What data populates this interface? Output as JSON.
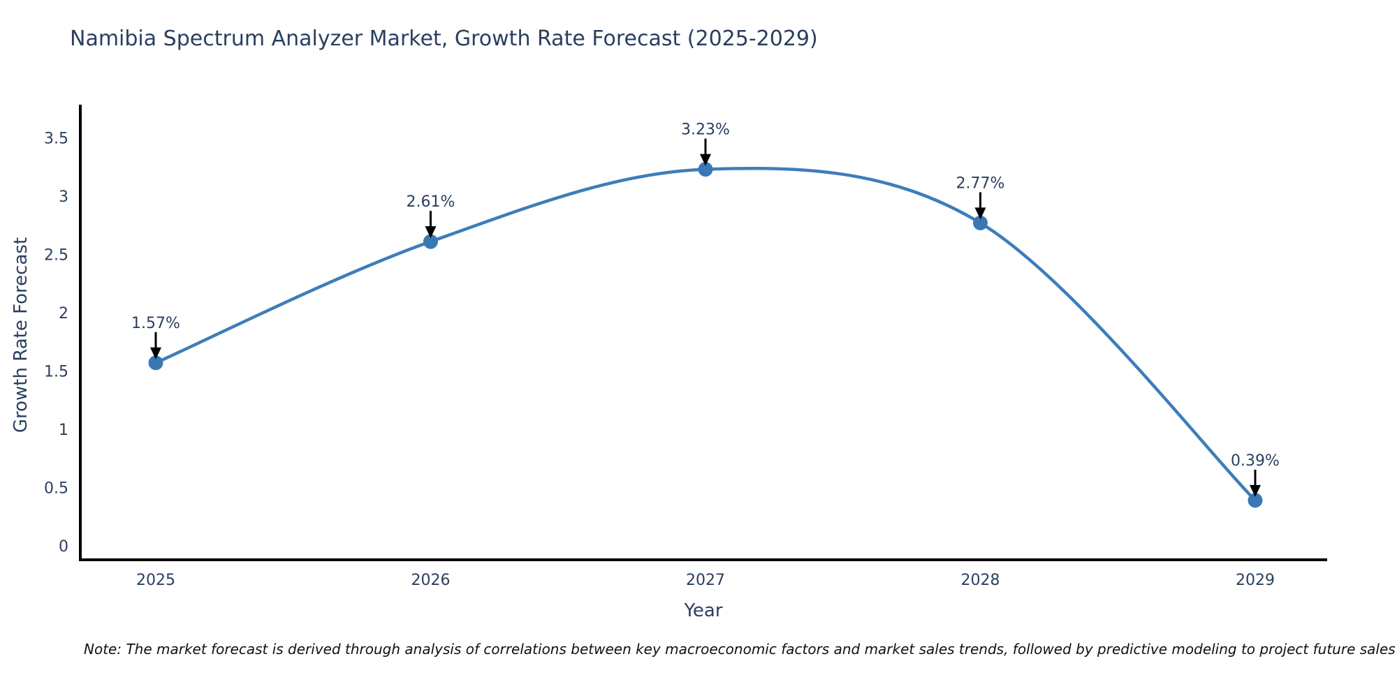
{
  "title": "Namibia Spectrum Analyzer Market, Growth Rate Forecast (2025-2029)",
  "note": "Note: The market forecast is derived through analysis of correlations between key macroeconomic factors and market sales trends, followed by predictive modeling to project future sales",
  "chart_data": {
    "type": "line",
    "title": "Namibia Spectrum Analyzer Market, Growth Rate Forecast (2025-2029)",
    "xlabel": "Year",
    "ylabel": "Growth Rate Forecast",
    "x": [
      2025,
      2026,
      2027,
      2028,
      2029
    ],
    "categories": [
      "2025",
      "2026",
      "2027",
      "2028",
      "2029"
    ],
    "values": [
      1.57,
      2.61,
      3.23,
      2.77,
      0.39
    ],
    "point_labels": [
      "1.57%",
      "2.61%",
      "3.23%",
      "2.77%",
      "0.39%"
    ],
    "yticks": [
      0,
      0.5,
      1,
      1.5,
      2,
      2.5,
      3,
      3.5
    ],
    "ytick_labels": [
      "0",
      "0.5",
      "1",
      "1.5",
      "2",
      "2.5",
      "3",
      "3.5"
    ],
    "ylim": [
      0,
      3.78
    ],
    "line_shape": "spline",
    "grid": false,
    "legend_position": "none",
    "markers": true,
    "annotations_with_arrows": true,
    "colors": {
      "line": "#3e7db9",
      "marker": "#3a78b5",
      "axis": "#000000",
      "text": "#2a3f5f",
      "arrow": "#000000",
      "note": "#111111",
      "background": "#ffffff"
    }
  }
}
